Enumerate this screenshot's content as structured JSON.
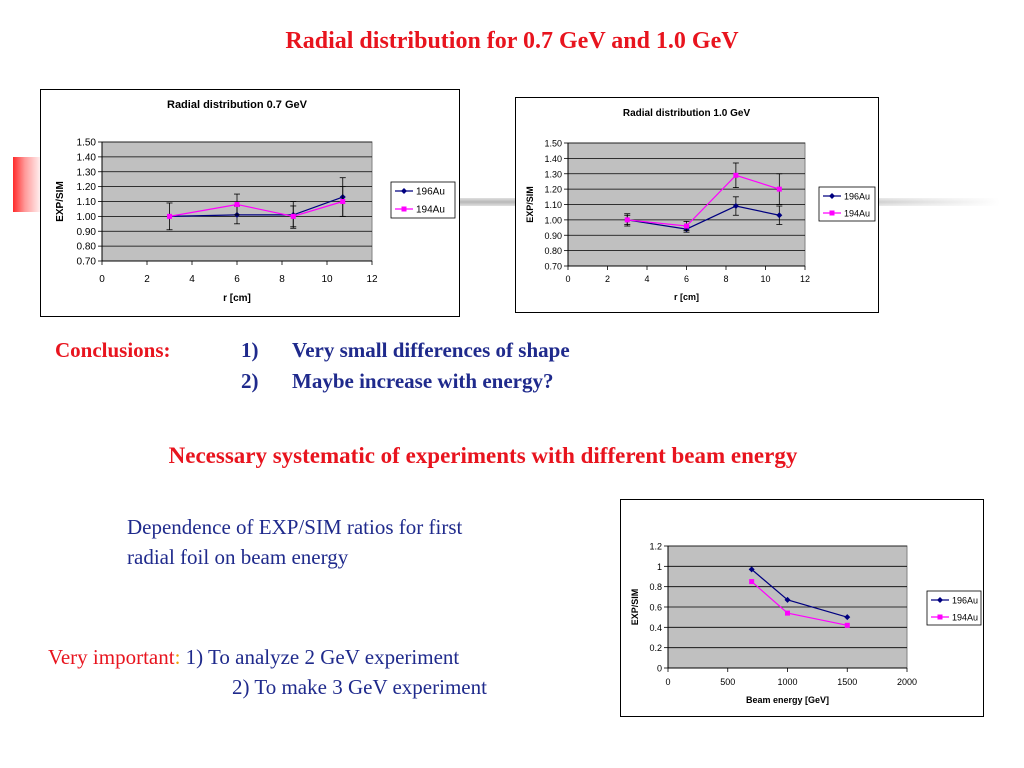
{
  "slide": {
    "title": "Radial distribution for 0.7 GeV and 1.0 GeV",
    "conclusions_label": "Conclusions:",
    "conclusions": [
      {
        "num": "1)",
        "text": "Very small differences of shape"
      },
      {
        "num": "2)",
        "text": "Maybe increase with energy?"
      }
    ],
    "necessary": "Necessary systematic of experiments with different beam energy",
    "dependence_line1": "Dependence of EXP/SIM ratios for first",
    "dependence_line2": "radial foil on beam energy",
    "important_label": "Very important",
    "important_colon": ":",
    "important_items": [
      "1) To analyze 2 GeV experiment",
      "2) To make 3 GeV experiment"
    ]
  },
  "colors": {
    "title_red": "#e8141e",
    "text_blue": "#1f2a8c",
    "series_196": "#000080",
    "series_194": "#ff00ff",
    "plot_bg": "#c0c0c0"
  },
  "chart_data": [
    {
      "type": "line",
      "title": "Radial distribution 0.7 GeV",
      "xlabel": "r [cm]",
      "ylabel": "EXP/SIM",
      "xlim": [
        0,
        12
      ],
      "ylim": [
        0.7,
        1.5
      ],
      "xticks": [
        "0",
        "2",
        "4",
        "6",
        "8",
        "10",
        "12"
      ],
      "yticks": [
        "0.70",
        "0.80",
        "0.90",
        "1.00",
        "1.10",
        "1.20",
        "1.30",
        "1.40",
        "1.50"
      ],
      "grid": true,
      "legend": "right",
      "series": [
        {
          "name": "196Au",
          "x": [
            3.0,
            6.0,
            8.5,
            10.7
          ],
          "y": [
            1.0,
            1.01,
            1.01,
            1.13
          ],
          "err": [
            0.09,
            0.06,
            0.09,
            0.13
          ]
        },
        {
          "name": "194Au",
          "x": [
            3.0,
            6.0,
            8.5,
            10.7
          ],
          "y": [
            1.0,
            1.08,
            1.0,
            1.1
          ],
          "err": [
            0,
            0.07,
            0.07,
            0.1
          ]
        }
      ]
    },
    {
      "type": "line",
      "title": "Radial distribution 1.0 GeV",
      "xlabel": "r [cm]",
      "ylabel": "EXP/SIM",
      "xlim": [
        0,
        12
      ],
      "ylim": [
        0.7,
        1.5
      ],
      "xticks": [
        "0",
        "2",
        "4",
        "6",
        "8",
        "10",
        "12"
      ],
      "yticks": [
        "0.70",
        "0.80",
        "0.90",
        "1.00",
        "1.10",
        "1.20",
        "1.30",
        "1.40",
        "1.50"
      ],
      "grid": true,
      "legend": "right",
      "series": [
        {
          "name": "196Au",
          "x": [
            3.0,
            6.0,
            8.5,
            10.7
          ],
          "y": [
            1.0,
            0.94,
            1.09,
            1.03
          ],
          "err": [
            0.03,
            0.02,
            0.06,
            0.06
          ]
        },
        {
          "name": "194Au",
          "x": [
            3.0,
            6.0,
            8.5,
            10.7
          ],
          "y": [
            1.0,
            0.96,
            1.29,
            1.2
          ],
          "err": [
            0.04,
            0.03,
            0.08,
            0.1
          ]
        }
      ]
    },
    {
      "type": "line",
      "title": "",
      "xlabel": "Beam energy [GeV]",
      "ylabel": "EXP/SIM",
      "xlim": [
        0,
        2000
      ],
      "ylim": [
        0,
        1.2
      ],
      "xticks": [
        "0",
        "500",
        "1000",
        "1500",
        "2000"
      ],
      "yticks": [
        "0",
        "0.2",
        "0.4",
        "0.6",
        "0.8",
        "1",
        "1.2"
      ],
      "grid": true,
      "legend": "right",
      "series": [
        {
          "name": "196Au",
          "x": [
            700,
            1000,
            1500
          ],
          "y": [
            0.97,
            0.67,
            0.5
          ],
          "err": [
            0,
            0,
            0
          ]
        },
        {
          "name": "194Au",
          "x": [
            700,
            1000,
            1500
          ],
          "y": [
            0.85,
            0.54,
            0.42
          ],
          "err": [
            0,
            0,
            0
          ]
        }
      ]
    }
  ]
}
